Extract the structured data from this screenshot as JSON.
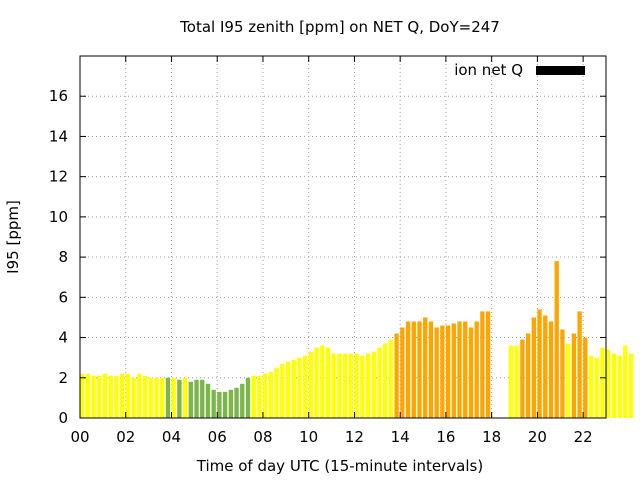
{
  "chart_data": {
    "type": "bar",
    "title": "Total I95 zenith [ppm] on NET Q, DoY=247",
    "xlabel": "Time of day UTC (15-minute intervals)",
    "ylabel": "I95 [ppm]",
    "xlim": [
      0,
      23
    ],
    "ylim": [
      0,
      18
    ],
    "xticks": [
      "00",
      "02",
      "04",
      "06",
      "08",
      "10",
      "12",
      "14",
      "16",
      "18",
      "20",
      "22"
    ],
    "yticks": [
      "0",
      "2",
      "4",
      "6",
      "8",
      "10",
      "12",
      "14",
      "16"
    ],
    "grid": true,
    "legend": {
      "position": "top-right",
      "label": "ion net Q",
      "color": "#000000"
    },
    "colors": {
      "low": "#7ab648",
      "medium": "#ffff00",
      "high": "#ffa500"
    },
    "interval_hours": 0.25,
    "series": [
      {
        "values": [
          2.2,
          2.2,
          2.1,
          2.1,
          2.2,
          2.1,
          2.1,
          2.2,
          2.2,
          2.0,
          2.2,
          2.1,
          2.0,
          2.0,
          2.0,
          2.0,
          2.0,
          1.9,
          2.0,
          1.8,
          1.9,
          1.9,
          1.7,
          1.4,
          1.3,
          1.3,
          1.4,
          1.5,
          1.7,
          2.0,
          2.1,
          2.1,
          2.2,
          2.3,
          2.5,
          2.7,
          2.8,
          2.9,
          3.0,
          3.1,
          3.3,
          3.5,
          3.6,
          3.5,
          3.2,
          3.2,
          3.2,
          3.2,
          3.2,
          3.1,
          3.2,
          3.3,
          3.5,
          3.7,
          3.9,
          4.2,
          4.5,
          4.8,
          4.8,
          4.8,
          5.0,
          4.8,
          4.5,
          4.6,
          4.6,
          4.7,
          4.8,
          4.8,
          4.5,
          4.8,
          5.3,
          5.3,
          null,
          null,
          null,
          3.6,
          3.6,
          3.9,
          4.2,
          5.0,
          5.4,
          5.1,
          4.8,
          7.8,
          4.4,
          3.7,
          4.2,
          5.3,
          4.0,
          3.1,
          3.0,
          3.5,
          3.4,
          3.2,
          3.1,
          3.6,
          3.2
        ],
        "levels": [
          "medium",
          "medium",
          "medium",
          "medium",
          "medium",
          "medium",
          "medium",
          "medium",
          "medium",
          "medium",
          "medium",
          "medium",
          "medium",
          "medium",
          "medium",
          "low",
          "medium",
          "low",
          "medium",
          "low",
          "low",
          "low",
          "low",
          "low",
          "low",
          "low",
          "low",
          "low",
          "low",
          "low",
          "medium",
          "medium",
          "medium",
          "medium",
          "medium",
          "medium",
          "medium",
          "medium",
          "medium",
          "medium",
          "medium",
          "medium",
          "medium",
          "medium",
          "medium",
          "medium",
          "medium",
          "medium",
          "medium",
          "medium",
          "medium",
          "medium",
          "medium",
          "medium",
          "medium",
          "high",
          "high",
          "high",
          "high",
          "high",
          "high",
          "high",
          "high",
          "high",
          "high",
          "high",
          "high",
          "high",
          "high",
          "high",
          "high",
          "high",
          null,
          null,
          null,
          "medium",
          "medium",
          "high",
          "high",
          "high",
          "high",
          "high",
          "high",
          "high",
          "high",
          "medium",
          "high",
          "high",
          "high",
          "medium",
          "medium",
          "medium",
          "medium",
          "medium",
          "medium",
          "medium",
          "medium"
        ]
      }
    ]
  }
}
